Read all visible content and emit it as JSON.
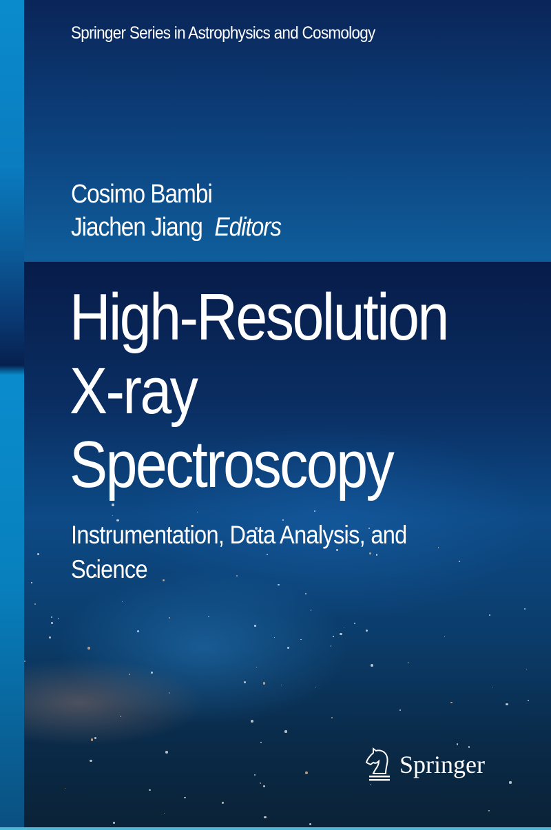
{
  "cover": {
    "series": "Springer Series in Astrophysics and Cosmology",
    "editors": [
      "Cosimo Bambi",
      "Jiachen Jiang"
    ],
    "editors_role": "Editors",
    "title_lines": [
      "High-Resolution",
      "X-ray",
      "Spectroscopy"
    ],
    "subtitle_lines": [
      "Instrumentation, Data Analysis, and",
      "Science"
    ],
    "publisher": "Springer",
    "colors": {
      "top_band": "#0f5e9c",
      "navy": "#0a2558",
      "strip": "#0a8ccc"
    }
  }
}
